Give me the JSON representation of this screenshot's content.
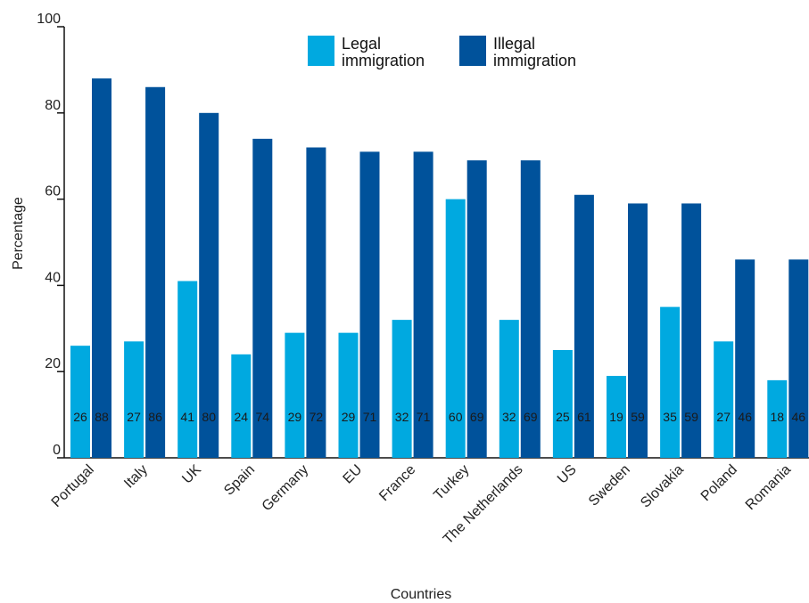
{
  "chart_data": {
    "type": "bar",
    "title": "",
    "xlabel": "Countries",
    "ylabel": "Percentage",
    "ylim": [
      0,
      100
    ],
    "yticks": [
      "0",
      "20",
      "40",
      "60",
      "80",
      "100"
    ],
    "grid": false,
    "legend_position": "top",
    "categories": [
      "Portugal",
      "Italy",
      "UK",
      "Spain",
      "Germany",
      "EU",
      "France",
      "Turkey",
      "The Netherlands",
      "US",
      "Sweden",
      "Slovakia",
      "Poland",
      "Romania"
    ],
    "series": [
      {
        "name": "Legal immigration",
        "name_lines": [
          "Legal",
          "immigration"
        ],
        "color": "#00a9e0",
        "values": [
          26,
          27,
          41,
          24,
          29,
          29,
          32,
          60,
          32,
          25,
          19,
          35,
          27,
          18
        ]
      },
      {
        "name": "Illegal immigration",
        "name_lines": [
          "Illegal",
          "immigration"
        ],
        "color": "#00529b",
        "values": [
          88,
          86,
          80,
          74,
          72,
          71,
          71,
          69,
          69,
          61,
          59,
          59,
          46,
          46
        ]
      }
    ]
  }
}
